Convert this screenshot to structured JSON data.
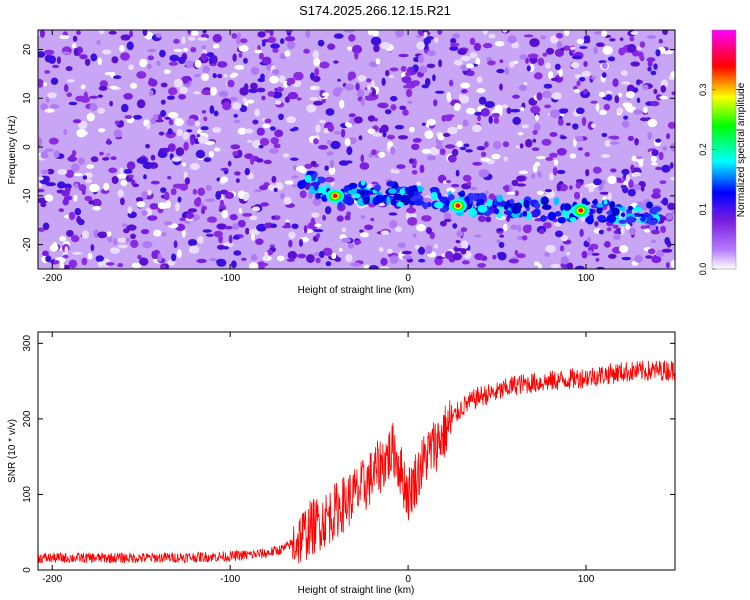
{
  "title": "S174.2025.266.12.15.R21",
  "chart_data": [
    {
      "type": "heatmap",
      "xlabel": "Height of straight line (km)",
      "ylabel": "Frequency (Hz)",
      "xlim": [
        -208,
        150
      ],
      "ylim": [
        -25,
        24
      ],
      "xticks": [
        -200,
        -100,
        0,
        100
      ],
      "yticks": [
        -20,
        -10,
        0,
        10,
        20
      ],
      "colorbar": {
        "label": "Normalized spectral amplitude",
        "range": [
          0,
          0.4
        ],
        "ticks": [
          0.0,
          0.1,
          0.2,
          0.3
        ],
        "colors": [
          "#ffffff",
          "#8a2be2",
          "#0000ff",
          "#00ffff",
          "#00ff00",
          "#ffff00",
          "#ff0000",
          "#ff00ff"
        ]
      },
      "signal_trace": {
        "x": [
          -60,
          -40,
          -20,
          0,
          20,
          40,
          60,
          80,
          100,
          120,
          140
        ],
        "frequency": [
          -6,
          -10,
          -9,
          -10,
          -11,
          -12,
          -12,
          -13,
          -13,
          -13.5,
          -14
        ]
      },
      "hotspots": [
        {
          "x": -41,
          "frequency": -10,
          "amplitude": 0.35
        },
        {
          "x": 28,
          "frequency": -12,
          "amplitude": 0.37
        },
        {
          "x": 97,
          "frequency": -13,
          "amplitude": 0.39
        }
      ]
    },
    {
      "type": "line",
      "xlabel": "Height of straight line (km)",
      "ylabel": "SNR (10 * v/v)",
      "xlim": [
        -208,
        150
      ],
      "ylim": [
        0,
        315
      ],
      "xticks": [
        -200,
        -100,
        0,
        100
      ],
      "yticks": [
        0,
        100,
        200,
        300
      ],
      "series": [
        {
          "color": "#ff0000",
          "x": [
            -208,
            -180,
            -150,
            -120,
            -100,
            -80,
            -70,
            -62,
            -55,
            -45,
            -35,
            -25,
            -15,
            -8,
            0,
            10,
            20,
            25,
            30,
            40,
            50,
            60,
            80,
            100,
            120,
            150
          ],
          "y": [
            16,
            16,
            16,
            17,
            18,
            22,
            28,
            40,
            55,
            70,
            90,
            110,
            140,
            160,
            100,
            150,
            180,
            200,
            215,
            230,
            235,
            245,
            250,
            255,
            262,
            265
          ]
        }
      ]
    }
  ]
}
